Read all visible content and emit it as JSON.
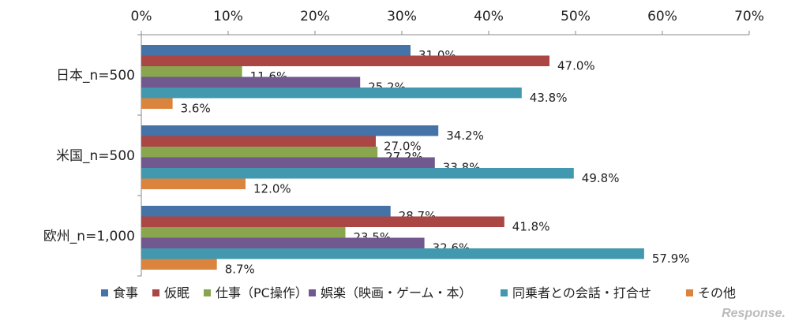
{
  "chart_data": {
    "type": "bar",
    "orientation": "horizontal",
    "categories": [
      "日本_n=500",
      "米国_n=500",
      "欧州_n=1,000"
    ],
    "series": [
      {
        "name": "食事",
        "color": "#4572A7",
        "values": [
          31.0,
          34.2,
          28.7
        ]
      },
      {
        "name": "仮眠",
        "color": "#AA4643",
        "values": [
          47.0,
          27.0,
          41.8
        ]
      },
      {
        "name": "仕事（PC操作）",
        "color": "#89A54E",
        "values": [
          11.6,
          27.2,
          23.5
        ]
      },
      {
        "name": "娯楽（映画・ゲーム・本）",
        "color": "#71588F",
        "values": [
          25.2,
          33.8,
          32.6
        ]
      },
      {
        "name": "同乗者との会話・打合せ",
        "color": "#4198AF",
        "values": [
          43.8,
          49.8,
          57.9
        ]
      },
      {
        "name": "その他",
        "color": "#DB843D",
        "values": [
          3.6,
          12.0,
          8.7
        ]
      }
    ],
    "xlim": [
      0,
      70
    ],
    "xticks": [
      "0%",
      "10%",
      "20%",
      "30%",
      "40%",
      "50%",
      "60%",
      "70%"
    ],
    "axis_position": "top",
    "legend_position": "bottom",
    "grid": false
  },
  "watermark": "Response."
}
